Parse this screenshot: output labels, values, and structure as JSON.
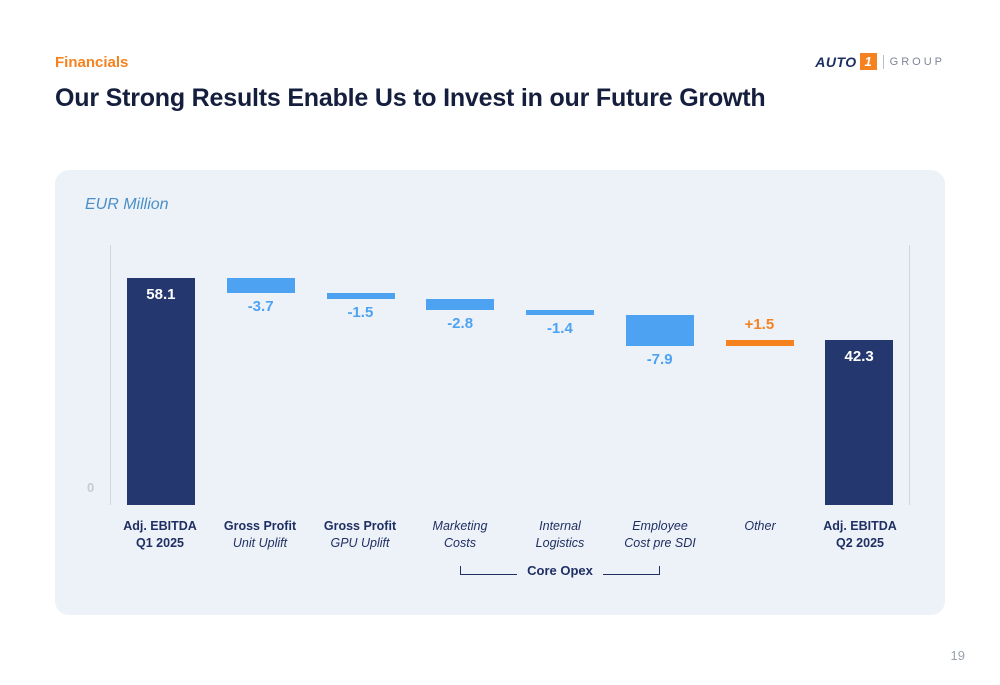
{
  "page": {
    "eyebrow": "Financials",
    "title": "Our Strong Results Enable Us to Invest in our Future Growth",
    "page_number": "19"
  },
  "logo": {
    "auto_text": "AUTO",
    "one_text": "1",
    "group_text": "GROUP"
  },
  "chart_panel": {
    "unit_label": "EUR Million",
    "zero_label": "0"
  },
  "chart_data": {
    "type": "bar",
    "subtype": "waterfall",
    "unit": "EUR Million",
    "baseline": 0,
    "colors": {
      "total_bar": "#24386f",
      "negative_bar": "#4da3f2",
      "positive_bar": "#f5821f",
      "panel_background": "#edf2f8",
      "axis_line": "#ccd7e2",
      "label_navy": "#1f2f63"
    },
    "bars": [
      {
        "id": "adj-ebitda-q1-2025",
        "kind": "total",
        "value": 58.1,
        "label": "58.1",
        "lines": [
          "Adj. EBITDA",
          "Q1 2025"
        ],
        "style": "bold"
      },
      {
        "id": "gross-profit-unit-uplift",
        "kind": "delta",
        "value": -3.7,
        "label": "-3.7",
        "lines": [
          "Gross Profit",
          "Unit Uplift"
        ],
        "style": "mixed"
      },
      {
        "id": "gross-profit-gpu-uplift",
        "kind": "delta",
        "value": -1.5,
        "label": "-1.5",
        "lines": [
          "Gross Profit",
          "GPU Uplift"
        ],
        "style": "mixed"
      },
      {
        "id": "marketing-costs",
        "kind": "delta",
        "value": -2.8,
        "label": "-2.8",
        "lines": [
          "Marketing",
          "Costs"
        ],
        "style": "italic"
      },
      {
        "id": "internal-logistics",
        "kind": "delta",
        "value": -1.4,
        "label": "-1.4",
        "lines": [
          "Internal",
          "Logistics"
        ],
        "style": "italic"
      },
      {
        "id": "employee-cost-pre-sdi",
        "kind": "delta",
        "value": -7.9,
        "label": "-7.9",
        "lines": [
          "Employee",
          "Cost pre SDI"
        ],
        "style": "italic"
      },
      {
        "id": "other",
        "kind": "delta",
        "value": 1.5,
        "label": "+1.5",
        "lines": [
          "Other",
          ""
        ],
        "style": "italic"
      },
      {
        "id": "adj-ebitda-q2-2025",
        "kind": "total",
        "value": 42.3,
        "label": "42.3",
        "lines": [
          "Adj. EBITDA",
          "Q2 2025"
        ],
        "style": "bold"
      }
    ],
    "bracket": {
      "label": "Core Opex",
      "from": 3,
      "to": 5
    }
  }
}
